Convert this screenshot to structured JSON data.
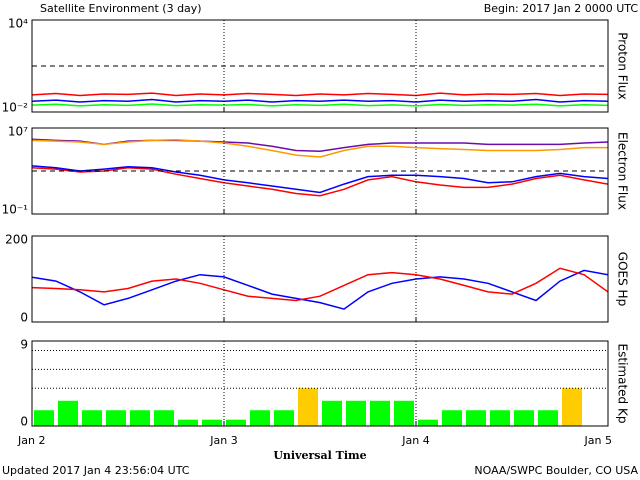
{
  "title": "Satellite Environment (3 day)",
  "begin": "Begin:  2017 Jan 2 0000 UTC",
  "x_axis": {
    "label": "Universal Time",
    "ticks": [
      "Jan 2",
      "Jan 3",
      "Jan 4",
      "Jan 5"
    ]
  },
  "updated": "Updated 2017 Jan  4 23:56:04 UTC",
  "credit": "NOAA/SWPC Boulder, CO USA",
  "chart_data": [
    {
      "type": "line",
      "ylabel": "Proton Flux",
      "log": true,
      "ylim": [
        0.01,
        10000
      ],
      "yticks": [
        {
          "value": 10000,
          "label": "10⁴"
        },
        {
          "value": 0.01,
          "label": "10⁻²"
        }
      ],
      "reference_lines": {
        "values": [
          10
        ],
        "style": "dashed"
      },
      "series": [
        {
          "color": "#ff0000",
          "values": [
            0.13,
            0.16,
            0.12,
            0.15,
            0.14,
            0.17,
            0.12,
            0.15,
            0.13,
            0.16,
            0.14,
            0.12,
            0.15,
            0.13,
            0.16,
            0.14,
            0.12,
            0.17,
            0.13,
            0.15,
            0.14,
            0.16,
            0.12,
            0.15,
            0.14
          ]
        },
        {
          "color": "#0000ff",
          "values": [
            0.05,
            0.06,
            0.045,
            0.055,
            0.05,
            0.065,
            0.045,
            0.055,
            0.05,
            0.06,
            0.045,
            0.055,
            0.05,
            0.06,
            0.05,
            0.055,
            0.045,
            0.06,
            0.05,
            0.055,
            0.05,
            0.065,
            0.045,
            0.055,
            0.05
          ]
        },
        {
          "color": "#00ff00",
          "values": [
            0.028,
            0.032,
            0.025,
            0.03,
            0.027,
            0.033,
            0.026,
            0.03,
            0.028,
            0.031,
            0.025,
            0.03,
            0.027,
            0.032,
            0.026,
            0.029,
            0.025,
            0.031,
            0.027,
            0.03,
            0.028,
            0.032,
            0.025,
            0.03,
            0.027
          ]
        }
      ]
    },
    {
      "type": "line",
      "ylabel": "Electron Flux",
      "log": true,
      "ylim": [
        0.1,
        10000000
      ],
      "yticks": [
        {
          "value": 10000000,
          "label": "10⁷"
        },
        {
          "value": 0.1,
          "label": "10⁻¹"
        }
      ],
      "reference_lines": {
        "values": [
          1000
        ],
        "style": "dashed"
      },
      "series": [
        {
          "color": "#6a0dad",
          "values": [
            900000,
            700000,
            600000,
            300000,
            600000,
            700000,
            700000,
            600000,
            500000,
            400000,
            200000,
            80000,
            70000,
            150000,
            300000,
            400000,
            400000,
            400000,
            400000,
            300000,
            300000,
            300000,
            300000,
            400000,
            500000
          ]
        },
        {
          "color": "#ff9900",
          "values": [
            700000,
            600000,
            500000,
            300000,
            500000,
            700000,
            800000,
            600000,
            400000,
            200000,
            80000,
            30000,
            20000,
            80000,
            200000,
            200000,
            150000,
            120000,
            100000,
            80000,
            80000,
            80000,
            100000,
            150000,
            150000
          ]
        },
        {
          "color": "#ff0000",
          "values": [
            2000,
            1500,
            800,
            1000,
            2000,
            1500,
            500,
            200,
            80,
            40,
            20,
            8,
            5,
            20,
            150,
            300,
            100,
            50,
            30,
            30,
            60,
            200,
            400,
            150,
            60
          ]
        },
        {
          "color": "#0000ff",
          "values": [
            3000,
            2000,
            1000,
            1500,
            2500,
            2000,
            800,
            400,
            150,
            80,
            40,
            20,
            10,
            60,
            300,
            400,
            400,
            300,
            200,
            80,
            100,
            300,
            600,
            300,
            200
          ]
        }
      ]
    },
    {
      "type": "line",
      "ylabel": "GOES Hp",
      "log": false,
      "ylim": [
        0,
        200
      ],
      "yticks": [
        200,
        0
      ],
      "series": [
        {
          "color": "#0000ff",
          "values": [
            104,
            95,
            70,
            40,
            55,
            75,
            95,
            110,
            105,
            85,
            65,
            55,
            45,
            30,
            70,
            90,
            100,
            105,
            100,
            90,
            70,
            50,
            95,
            120,
            110
          ]
        },
        {
          "color": "#ff0000",
          "values": [
            80,
            78,
            75,
            70,
            78,
            95,
            100,
            90,
            75,
            60,
            55,
            50,
            60,
            85,
            110,
            115,
            110,
            100,
            85,
            70,
            65,
            90,
            125,
            110,
            70
          ]
        }
      ]
    },
    {
      "type": "bar",
      "ylabel": "Estimated Kp",
      "log": false,
      "ylim": [
        0,
        9
      ],
      "yticks": [
        9,
        0
      ],
      "reference_lines": {
        "values": [
          4,
          6,
          8
        ],
        "style": "dotted"
      },
      "series": [
        {
          "values": [
            1.67,
            2.67,
            1.67,
            1.67,
            1.67,
            1.67,
            0.67,
            0.67,
            0.67,
            1.67,
            1.67,
            4,
            2.67,
            2.67,
            2.67,
            2.67,
            0.67,
            1.67,
            1.67,
            1.67,
            1.67,
            1.67,
            4,
            null
          ],
          "colors": [
            "#00ff00",
            "#00ff00",
            "#00ff00",
            "#00ff00",
            "#00ff00",
            "#00ff00",
            "#00ff00",
            "#00ff00",
            "#00ff00",
            "#00ff00",
            "#00ff00",
            "#ffcc00",
            "#00ff00",
            "#00ff00",
            "#00ff00",
            "#00ff00",
            "#00ff00",
            "#00ff00",
            "#00ff00",
            "#00ff00",
            "#00ff00",
            "#00ff00",
            "#ffcc00",
            null
          ]
        }
      ]
    }
  ]
}
